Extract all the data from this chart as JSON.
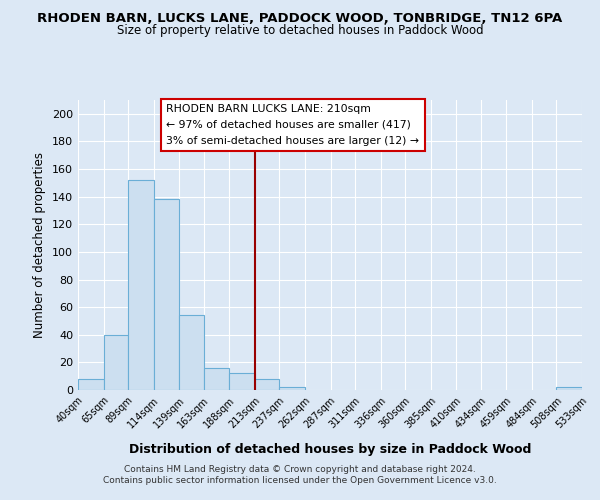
{
  "title": "RHODEN BARN, LUCKS LANE, PADDOCK WOOD, TONBRIDGE, TN12 6PA",
  "subtitle": "Size of property relative to detached houses in Paddock Wood",
  "xlabel": "Distribution of detached houses by size in Paddock Wood",
  "ylabel": "Number of detached properties",
  "bar_color": "#ccdff0",
  "bar_edge_color": "#6aaed6",
  "vline_x": 213,
  "vline_color": "#990000",
  "annotation_title": "RHODEN BARN LUCKS LANE: 210sqm",
  "annotation_line1": "← 97% of detached houses are smaller (417)",
  "annotation_line2": "3% of semi-detached houses are larger (12) →",
  "annotation_box_color": "#ffffff",
  "annotation_box_edge": "#cc0000",
  "bin_edges": [
    40,
    65,
    89,
    114,
    139,
    163,
    188,
    213,
    237,
    262,
    287,
    311,
    336,
    360,
    385,
    410,
    434,
    459,
    484,
    508,
    533
  ],
  "bin_heights": [
    8,
    40,
    152,
    138,
    54,
    16,
    12,
    8,
    2,
    0,
    0,
    0,
    0,
    0,
    0,
    0,
    0,
    0,
    0,
    2
  ],
  "xlim": [
    40,
    533
  ],
  "ylim": [
    0,
    210
  ],
  "yticks": [
    0,
    20,
    40,
    60,
    80,
    100,
    120,
    140,
    160,
    180,
    200
  ],
  "footer1": "Contains HM Land Registry data © Crown copyright and database right 2024.",
  "footer2": "Contains public sector information licensed under the Open Government Licence v3.0.",
  "background_color": "#dce8f5",
  "plot_bg_color": "#dce8f5",
  "grid_color": "#ffffff"
}
